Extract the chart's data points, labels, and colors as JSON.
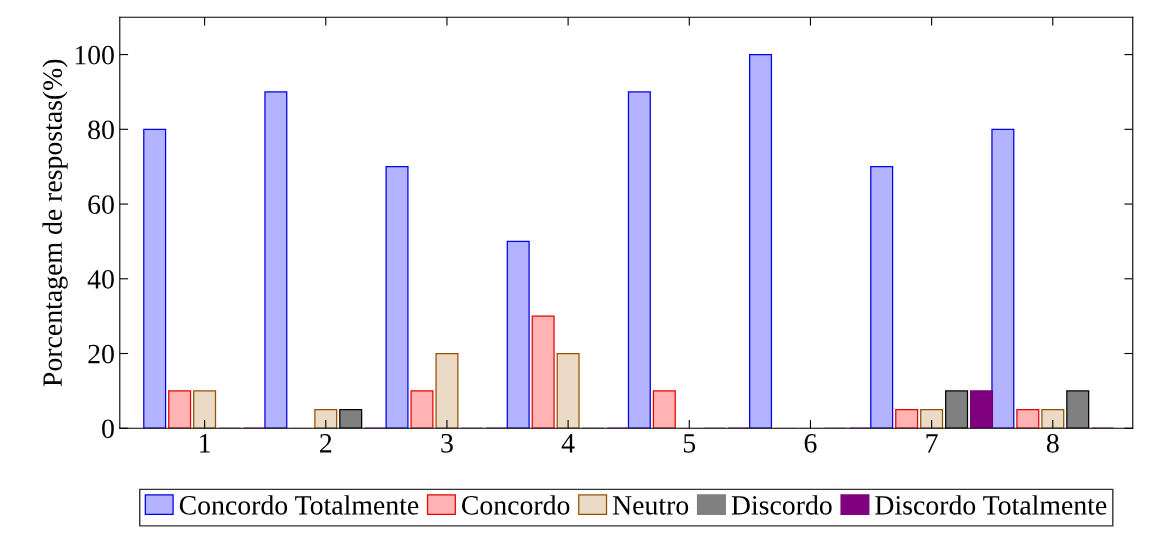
{
  "chart_data": {
    "type": "bar",
    "ylabel": "Porcentagem de respostas(%)",
    "x": [
      1,
      2,
      3,
      4,
      5,
      6,
      7,
      8
    ],
    "series": [
      {
        "name": "Concordo Totalmente",
        "color": "#b3b3ff",
        "values": [
          80,
          90,
          70,
          50,
          90,
          100,
          70,
          80
        ]
      },
      {
        "name": "Concordo",
        "color": "#ffb3b3",
        "values": [
          10,
          0,
          10,
          30,
          10,
          0,
          5,
          5
        ]
      },
      {
        "name": "Neutro",
        "color": "#ebdac6",
        "values": [
          10,
          5,
          20,
          20,
          0,
          0,
          5,
          5
        ]
      },
      {
        "name": "Discordo",
        "color": "#808080",
        "values": [
          0,
          5,
          0,
          0,
          0,
          0,
          10,
          10
        ]
      },
      {
        "name": "Discordo Totalmente",
        "color": "#800080",
        "values": [
          0,
          0,
          0,
          0,
          0,
          0,
          10,
          0
        ]
      }
    ],
    "xlim": [
      0.3,
      8.66
    ],
    "xticks": [
      1,
      2,
      3,
      4,
      5,
      6,
      7,
      8
    ],
    "ylim": [
      0,
      110
    ],
    "yticks": [
      0,
      20,
      40,
      60,
      80,
      100
    ],
    "grid": false,
    "legend": "bottom"
  }
}
